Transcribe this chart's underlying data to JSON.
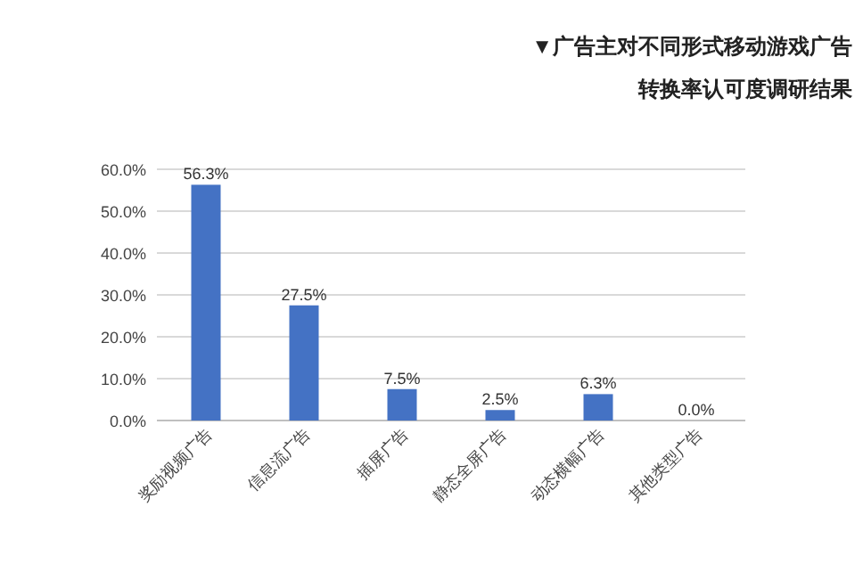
{
  "chart_data": {
    "type": "bar",
    "title": "▼广告主对不同形式移动游戏广告",
    "subtitle": "转换率认可度调研结果",
    "categories": [
      "奖励视频广告",
      "信息流广告",
      "插屏广告",
      "静态全屏广告",
      "动态横幅广告",
      "其他类型广告"
    ],
    "values": [
      56.3,
      27.5,
      7.5,
      2.5,
      6.3,
      0.0
    ],
    "value_labels": [
      "56.3%",
      "27.5%",
      "7.5%",
      "2.5%",
      "6.3%",
      "0.0%"
    ],
    "color": "#4472c4",
    "ylim": [
      0,
      60
    ],
    "yticks": [
      {
        "value": 0,
        "label": "0.0%"
      },
      {
        "value": 10,
        "label": "10.0%"
      },
      {
        "value": 20,
        "label": "20.0%"
      },
      {
        "value": 30,
        "label": "30.0%"
      },
      {
        "value": 40,
        "label": "40.0%"
      },
      {
        "value": 50,
        "label": "50.0%"
      },
      {
        "value": 60,
        "label": "60.0%"
      }
    ],
    "grid": "y"
  }
}
